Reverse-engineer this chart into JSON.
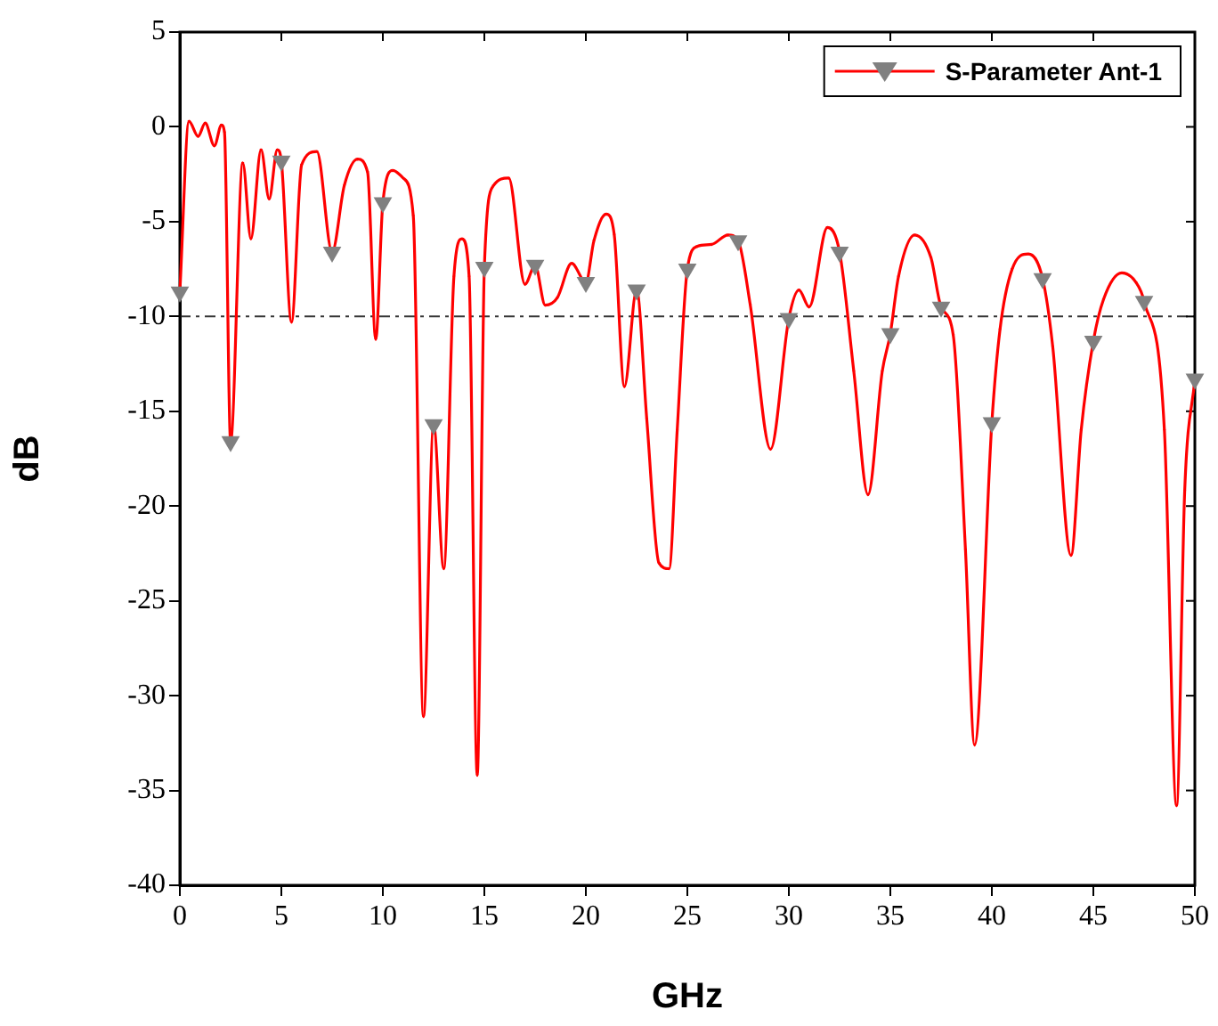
{
  "chart_data": {
    "type": "line",
    "xlabel": "GHz",
    "ylabel": "dB",
    "xlim": [
      0,
      50
    ],
    "xticks": [
      0,
      5,
      10,
      15,
      20,
      25,
      30,
      35,
      40,
      45,
      50
    ],
    "ylim": [
      -40,
      5
    ],
    "yticks": [
      -40,
      -35,
      -30,
      -25,
      -20,
      -15,
      -10,
      -5,
      0,
      5
    ],
    "grid": false,
    "legend": "top right",
    "marker": "triangle",
    "line_style": "solid",
    "ref_lines": [
      {
        "axis": "y",
        "value": -10,
        "color": "#333333",
        "line_style": "dashdot"
      }
    ],
    "series": [
      {
        "name": "S-Parameter Ant-1",
        "color": "#ff0000",
        "x": [
          0,
          0.45,
          0.9,
          1.25,
          1.7,
          2.05,
          2.2,
          2.5,
          3.1,
          3.5,
          4.0,
          4.4,
          4.8,
          5,
          5.5,
          6.0,
          6.75,
          7.5,
          8.1,
          8.75,
          9.25,
          9.65,
          10,
          10.5,
          11.0,
          11.5,
          12.0,
          12.5,
          13.0,
          13.5,
          13.9,
          14.25,
          14.65,
          15,
          15.45,
          16.2,
          17.0,
          17.5,
          18.0,
          18.6,
          19.3,
          20,
          20.4,
          21.0,
          21.4,
          21.9,
          22.5,
          23.0,
          23.6,
          24.1,
          24.5,
          25,
          25.5,
          26.2,
          27.0,
          27.5,
          28.1,
          29.1,
          30,
          30.5,
          31.0,
          31.9,
          32.5,
          33.2,
          33.9,
          34.6,
          35,
          35.4,
          36.2,
          37.0,
          37.5,
          38.1,
          38.7,
          39.15,
          40,
          40.4,
          41.0,
          41.8,
          42.5,
          43.0,
          43.9,
          44.4,
          45,
          45.5,
          46.4,
          47.1,
          47.5,
          48.5,
          49.1,
          49.5,
          50
        ],
        "values": [
          -8.7,
          0.3,
          -0.5,
          0.2,
          -1.0,
          0.1,
          -0.3,
          -16.6,
          -1.9,
          -5.9,
          -1.2,
          -3.8,
          -1.2,
          -1.8,
          -10.3,
          -2.0,
          -1.3,
          -6.6,
          -3.1,
          -1.7,
          -2.4,
          -11.2,
          -4.0,
          -2.3,
          -2.7,
          -4.7,
          -31.1,
          -15.7,
          -23.3,
          -7.9,
          -5.9,
          -7.9,
          -34.2,
          -7.4,
          -3.1,
          -2.7,
          -8.3,
          -7.3,
          -9.4,
          -9.0,
          -7.2,
          -8.2,
          -6.0,
          -4.6,
          -5.7,
          -13.7,
          -8.6,
          -15.4,
          -23.0,
          -23.3,
          -16.0,
          -7.5,
          -6.3,
          -6.2,
          -5.7,
          -6.0,
          -9.4,
          -17.0,
          -10.1,
          -8.6,
          -9.5,
          -5.3,
          -6.6,
          -12.9,
          -19.4,
          -12.9,
          -10.9,
          -7.9,
          -5.7,
          -6.9,
          -9.5,
          -11.0,
          -22.3,
          -32.6,
          -15.6,
          -10.7,
          -7.5,
          -6.7,
          -8.0,
          -11.6,
          -22.6,
          -16.0,
          -11.3,
          -9.1,
          -7.7,
          -8.2,
          -9.2,
          -16.0,
          -35.8,
          -19.2,
          -13.3
        ]
      }
    ]
  }
}
